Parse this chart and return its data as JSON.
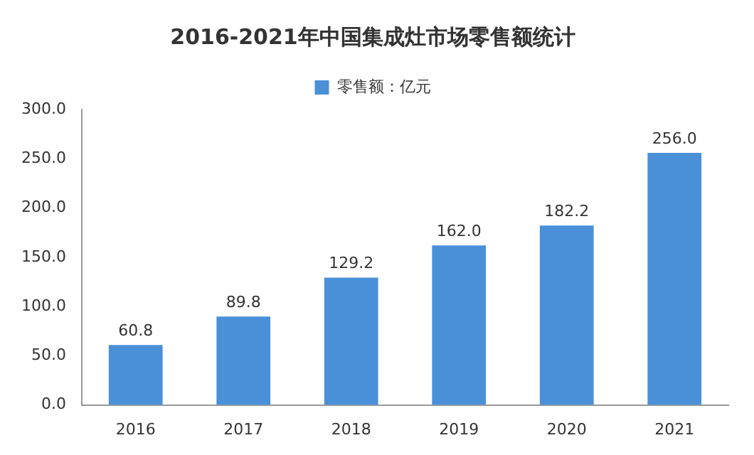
{
  "chart_data": {
    "type": "bar",
    "title": "2016-2021年中国集成灶市场零售额统计",
    "categories": [
      "2016",
      "2017",
      "2018",
      "2019",
      "2020",
      "2021"
    ],
    "series": [
      {
        "name": "零售额：亿元",
        "color": "#4a90d9",
        "values": [
          60.8,
          89.8,
          129.2,
          162.0,
          182.2,
          256.0
        ],
        "value_labels": [
          "60.8",
          "89.8",
          "129.2",
          "162.0",
          "182.2",
          "256.0"
        ]
      }
    ],
    "ylim": [
      0,
      300
    ],
    "yticks": [
      {
        "value": 0,
        "label": "0.0"
      },
      {
        "value": 50,
        "label": "50.0"
      },
      {
        "value": 100,
        "label": "100.0"
      },
      {
        "value": 150,
        "label": "150.0"
      },
      {
        "value": 200,
        "label": "200.0"
      },
      {
        "value": 250,
        "label": "250.0"
      },
      {
        "value": 300,
        "label": "300.0"
      }
    ],
    "legend": "top"
  }
}
